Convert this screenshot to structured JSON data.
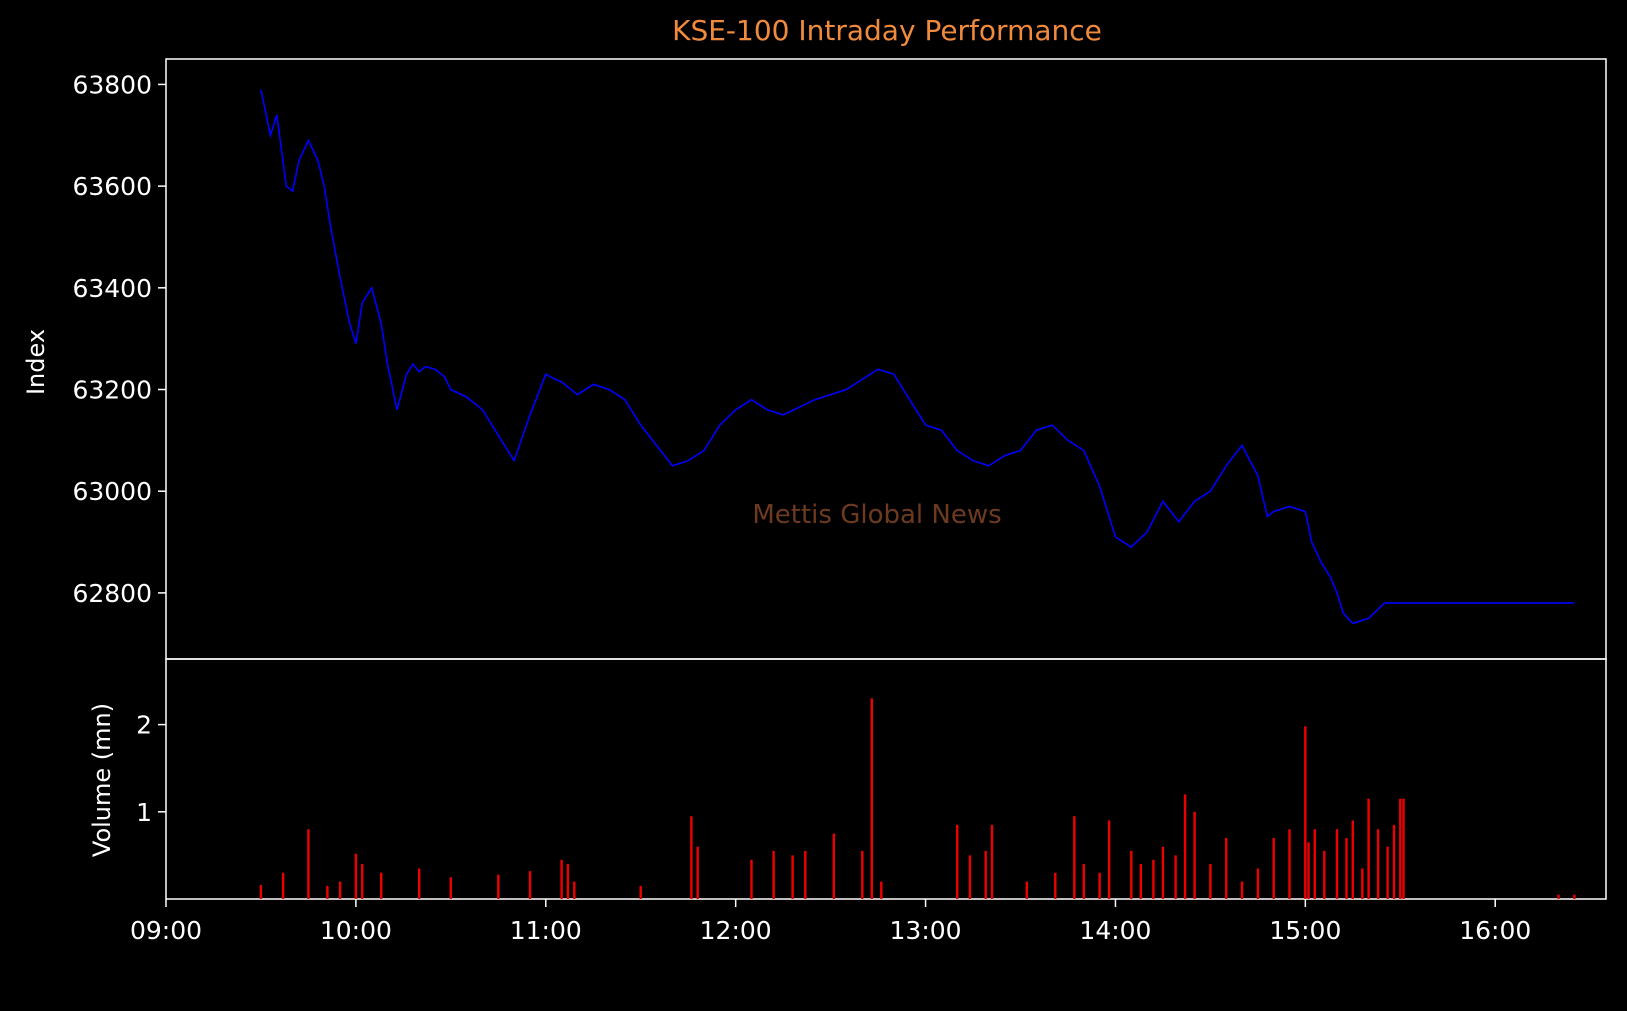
{
  "colors": {
    "background": "#000000",
    "axes": "#ffffff",
    "title": "#f08a3c",
    "price_line": "#0000ff",
    "volume_bars": "#ee0000",
    "watermark": "#6e3a1f"
  },
  "watermark": "Mettis Global News",
  "chart_data": [
    {
      "type": "line",
      "title": "KSE-100 Intraday Performance",
      "xlabel": "",
      "ylabel": "Index",
      "xlim": [
        "09:00",
        "16:35"
      ],
      "ylim": [
        62670,
        63850
      ],
      "yticks": [
        62800,
        63000,
        63200,
        63400,
        63600,
        63800
      ],
      "grid": false,
      "series": [
        {
          "x": [
            "09:30",
            "09:33",
            "09:35",
            "09:38",
            "09:40",
            "09:42",
            "09:45",
            "09:48",
            "09:50",
            "09:52",
            "09:55",
            "09:58",
            "10:00",
            "10:02",
            "10:05",
            "10:08",
            "10:10",
            "10:13",
            "10:16",
            "10:18",
            "10:20",
            "10:22",
            "10:25",
            "10:28",
            "10:30",
            "10:35",
            "10:40",
            "10:45",
            "10:50",
            "10:55",
            "11:00",
            "11:03",
            "11:05",
            "11:07",
            "11:10",
            "11:15",
            "11:20",
            "11:25",
            "11:30",
            "11:35",
            "11:40",
            "11:45",
            "11:50",
            "11:55",
            "12:00",
            "12:05",
            "12:10",
            "12:15",
            "12:20",
            "12:25",
            "12:30",
            "12:35",
            "12:40",
            "12:45",
            "12:50",
            "12:55",
            "13:00",
            "13:05",
            "13:10",
            "13:15",
            "13:20",
            "13:25",
            "13:30",
            "13:35",
            "13:40",
            "13:45",
            "13:50",
            "13:55",
            "14:00",
            "14:05",
            "14:10",
            "14:15",
            "14:20",
            "14:25",
            "14:30",
            "14:35",
            "14:40",
            "14:45",
            "14:48",
            "14:50",
            "14:55",
            "15:00",
            "15:02",
            "15:05",
            "15:08",
            "15:10",
            "15:12",
            "15:15",
            "15:20",
            "15:25",
            "15:30",
            "15:31",
            "15:35",
            "15:40",
            "15:45",
            "15:50",
            "15:55",
            "16:00",
            "16:05",
            "16:10",
            "16:15",
            "16:20",
            "16:25"
          ],
          "y": [
            63790,
            63700,
            63740,
            63600,
            63590,
            63650,
            63690,
            63650,
            63600,
            63520,
            63420,
            63330,
            63290,
            63370,
            63400,
            63330,
            63250,
            63160,
            63230,
            63250,
            63235,
            63245,
            63240,
            63225,
            63200,
            63185,
            63160,
            63110,
            63060,
            63150,
            63230,
            63220,
            63215,
            63205,
            63190,
            63210,
            63200,
            63180,
            63130,
            63090,
            63050,
            63060,
            63080,
            63130,
            63160,
            63180,
            63160,
            63150,
            63165,
            63180,
            63190,
            63200,
            63220,
            63240,
            63230,
            63180,
            63130,
            63120,
            63080,
            63060,
            63050,
            63070,
            63080,
            63120,
            63130,
            63100,
            63080,
            63010,
            62910,
            62890,
            62920,
            62980,
            62940,
            62980,
            63000,
            63050,
            63090,
            63030,
            62950,
            62960,
            62970,
            62960,
            62900,
            62860,
            62830,
            62800,
            62760,
            62740,
            62750,
            62780,
            62780,
            62780,
            62780,
            62780,
            62780,
            62780,
            62780,
            62780,
            62780,
            62780,
            62780,
            62780,
            62780
          ]
        }
      ]
    },
    {
      "type": "bar",
      "xlabel": "",
      "ylabel": "Volume (mn)",
      "ylim": [
        0,
        2.5
      ],
      "yticks": [
        1,
        2
      ],
      "xticks": [
        "09:00",
        "10:00",
        "11:00",
        "12:00",
        "13:00",
        "14:00",
        "15:00",
        "16:00"
      ],
      "grid": false,
      "x": [
        "09:30",
        "09:37",
        "09:45",
        "09:51",
        "09:55",
        "10:00",
        "10:02",
        "10:08",
        "10:20",
        "10:30",
        "10:45",
        "10:55",
        "11:05",
        "11:07",
        "11:09",
        "11:30",
        "11:46",
        "11:48",
        "12:05",
        "12:12",
        "12:18",
        "12:22",
        "12:31",
        "12:40",
        "12:43",
        "12:46",
        "13:10",
        "13:14",
        "13:19",
        "13:21",
        "13:32",
        "13:41",
        "13:47",
        "13:50",
        "13:55",
        "13:58",
        "14:05",
        "14:08",
        "14:12",
        "14:15",
        "14:19",
        "14:22",
        "14:25",
        "14:30",
        "14:35",
        "14:40",
        "14:45",
        "14:50",
        "14:55",
        "15:00",
        "15:01",
        "15:03",
        "15:06",
        "15:10",
        "15:13",
        "15:15",
        "15:18",
        "15:20",
        "15:23",
        "15:26",
        "15:28",
        "15:30",
        "15:31",
        "16:20",
        "16:25"
      ],
      "values": [
        0.16,
        0.3,
        0.8,
        0.15,
        0.2,
        0.52,
        0.4,
        0.3,
        0.35,
        0.25,
        0.28,
        0.32,
        0.45,
        0.4,
        0.2,
        0.15,
        0.95,
        0.6,
        0.45,
        0.55,
        0.5,
        0.55,
        0.75,
        0.55,
        2.3,
        0.2,
        0.85,
        0.5,
        0.55,
        0.85,
        0.2,
        0.3,
        0.95,
        0.4,
        0.3,
        0.9,
        0.55,
        0.4,
        0.45,
        0.6,
        0.5,
        1.2,
        1.0,
        0.4,
        0.7,
        0.2,
        0.35,
        0.7,
        0.8,
        1.98,
        0.65,
        0.8,
        0.55,
        0.8,
        0.7,
        0.9,
        0.35,
        1.15,
        0.8,
        0.6,
        0.85,
        1.15,
        1.15,
        0.05,
        0.05
      ]
    }
  ]
}
